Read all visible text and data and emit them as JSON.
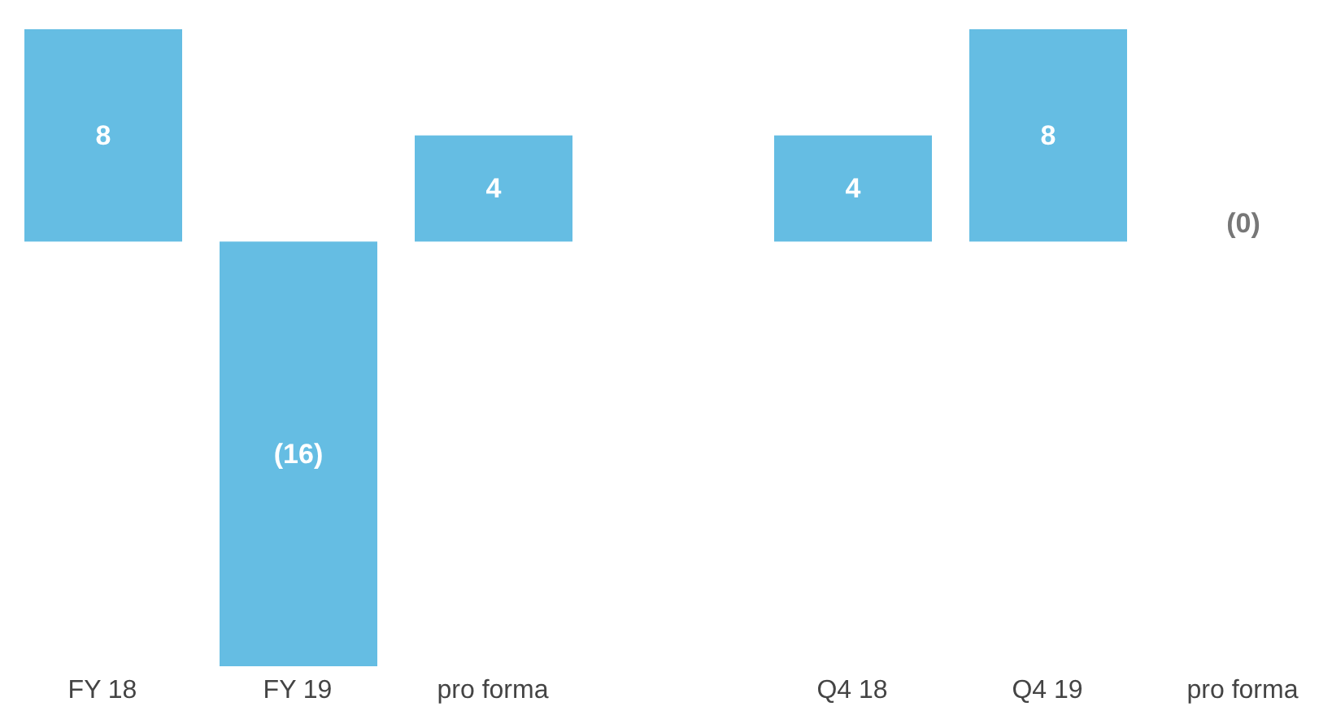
{
  "chart_data": [
    {
      "type": "bar",
      "categories": [
        "FY 18",
        "FY 19",
        "pro forma"
      ],
      "values": [
        8,
        -16,
        4
      ],
      "value_labels": [
        "8",
        "(16)",
        "4"
      ],
      "color": "#65bde3"
    },
    {
      "type": "bar",
      "categories": [
        "Q4 18",
        "Q4 19",
        "pro forma"
      ],
      "values": [
        4,
        8,
        0
      ],
      "value_labels": [
        "4",
        "8",
        "(0)"
      ],
      "color": "#65bde3"
    }
  ]
}
